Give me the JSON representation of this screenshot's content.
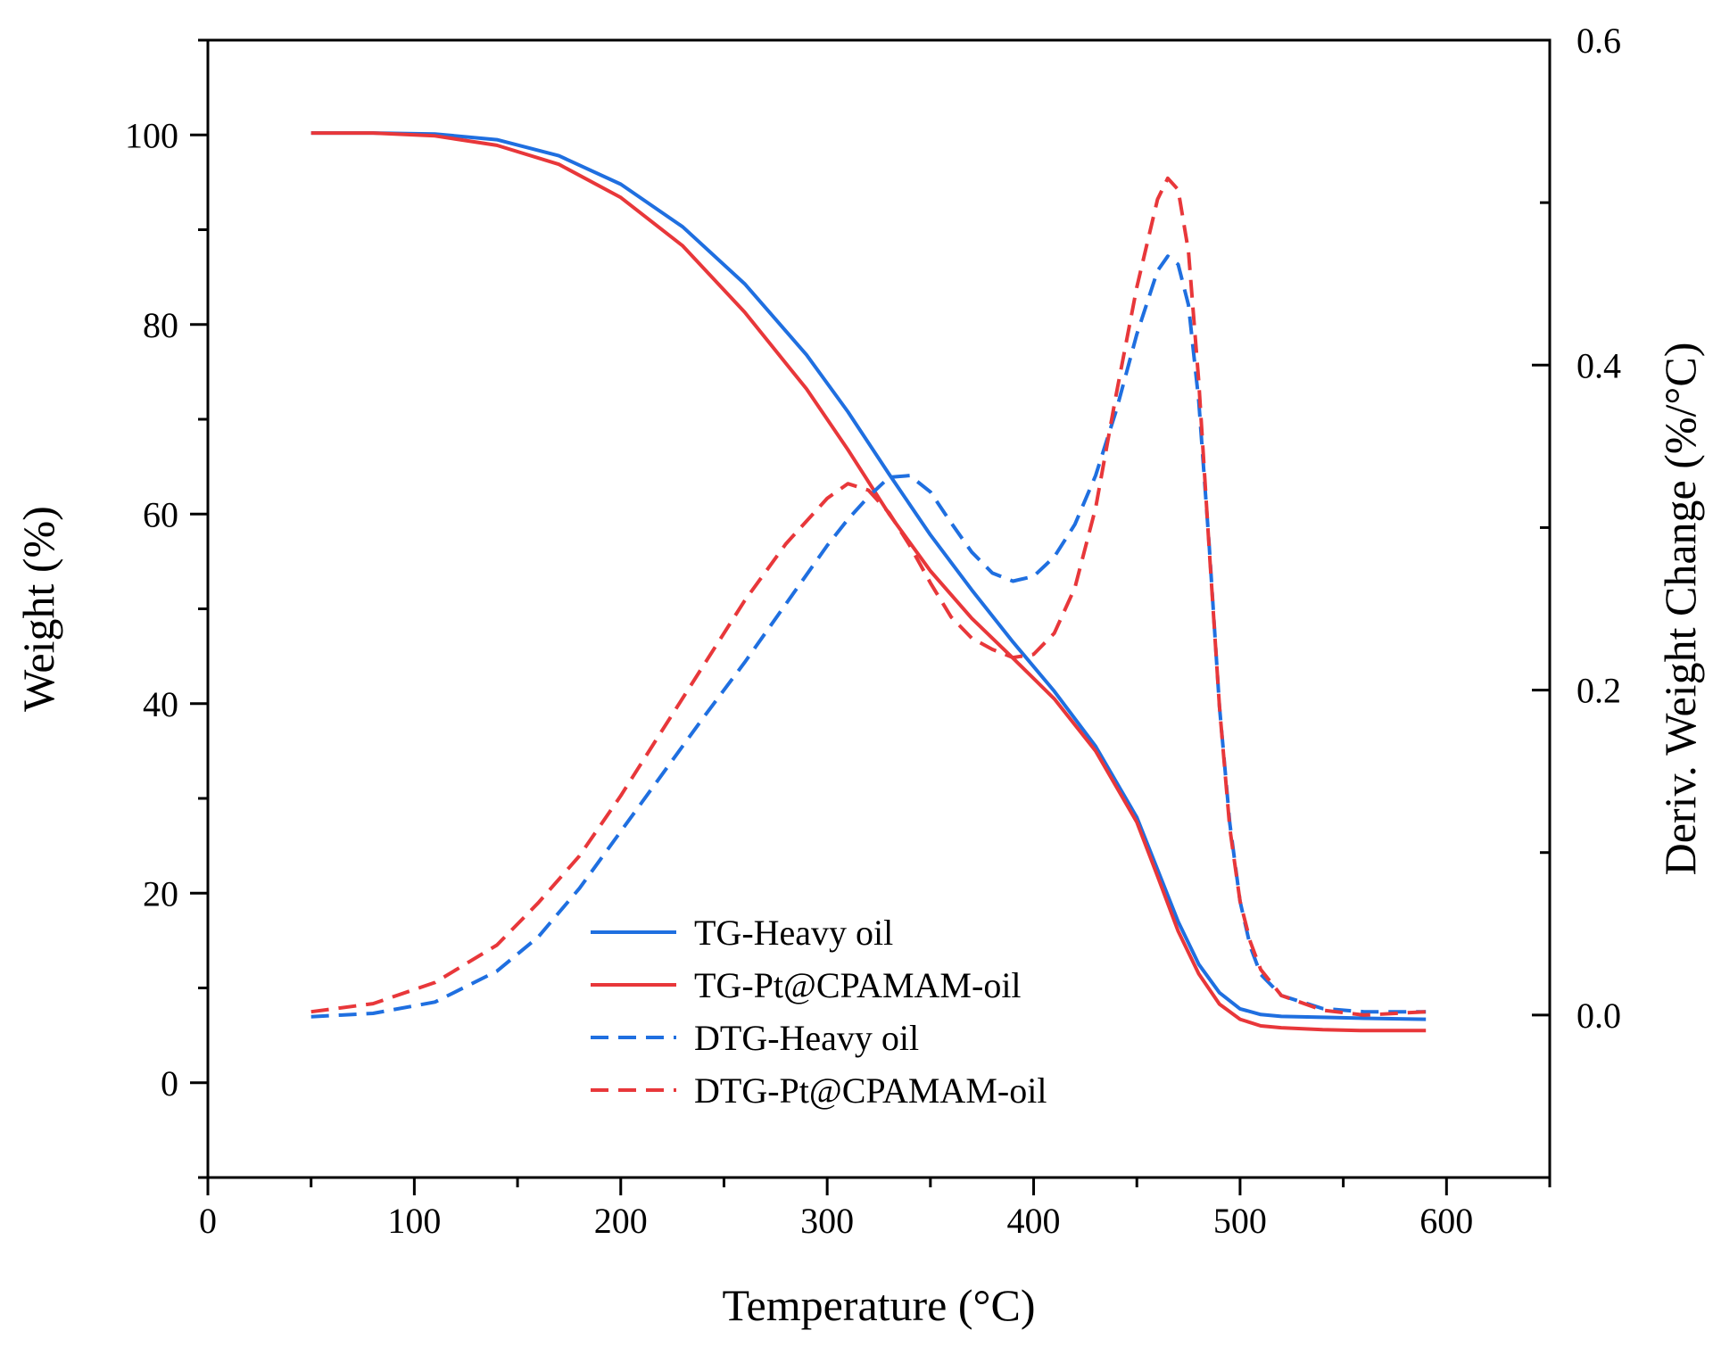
{
  "chart_data": {
    "type": "line",
    "xlabel": "Temperature (°C)",
    "ylabel": "Weight (%)",
    "y2label": "Deriv. Weight Change (%/°C)",
    "xlim": [
      0,
      650
    ],
    "ylim": [
      -10,
      110
    ],
    "y2lim": [
      -0.1,
      0.6
    ],
    "xticks": [
      0,
      100,
      200,
      300,
      400,
      500,
      600
    ],
    "yticks": [
      0,
      20,
      40,
      60,
      80,
      100
    ],
    "y2ticks": [
      0.0,
      0.2,
      0.4,
      0.6
    ],
    "grid": false,
    "legend_position": "bottom-center",
    "series": [
      {
        "name": "TG-Heavy oil",
        "axis": "left",
        "style": "solid",
        "color": "#1f6fe0",
        "x": [
          50,
          80,
          110,
          140,
          170,
          200,
          230,
          260,
          290,
          310,
          330,
          350,
          370,
          390,
          410,
          430,
          450,
          460,
          470,
          480,
          490,
          500,
          510,
          520,
          540,
          560,
          590
        ],
        "y": [
          100.2,
          100.2,
          100.1,
          99.5,
          97.8,
          94.8,
          90.3,
          84.3,
          76.8,
          70.8,
          64.2,
          57.8,
          52.0,
          46.5,
          41.3,
          35.5,
          28.0,
          22.5,
          17.0,
          12.5,
          9.5,
          7.8,
          7.2,
          7.0,
          6.9,
          6.8,
          6.7
        ]
      },
      {
        "name": "TG-Pt@CPAMAM-oil",
        "axis": "left",
        "style": "solid",
        "color": "#e8373a",
        "x": [
          50,
          80,
          110,
          140,
          170,
          200,
          230,
          260,
          290,
          310,
          330,
          350,
          370,
          390,
          410,
          430,
          450,
          460,
          470,
          480,
          490,
          500,
          510,
          520,
          540,
          560,
          590
        ],
        "y": [
          100.2,
          100.2,
          99.9,
          98.9,
          96.9,
          93.4,
          88.3,
          81.3,
          73.2,
          66.8,
          60.0,
          54.0,
          49.0,
          44.8,
          40.5,
          35.0,
          27.5,
          21.8,
          16.0,
          11.5,
          8.3,
          6.7,
          6.0,
          5.8,
          5.6,
          5.5,
          5.5
        ]
      },
      {
        "name": "DTG-Heavy oil",
        "axis": "right",
        "style": "dashed",
        "color": "#1f6fe0",
        "x": [
          50,
          80,
          110,
          140,
          160,
          180,
          200,
          220,
          240,
          260,
          280,
          300,
          310,
          320,
          330,
          340,
          350,
          360,
          370,
          380,
          390,
          400,
          410,
          420,
          430,
          440,
          450,
          460,
          465,
          470,
          475,
          480,
          485,
          490,
          495,
          500,
          505,
          510,
          520,
          540,
          560,
          590
        ],
        "y": [
          -0.001,
          0.001,
          0.008,
          0.027,
          0.048,
          0.078,
          0.113,
          0.148,
          0.183,
          0.217,
          0.253,
          0.289,
          0.305,
          0.319,
          0.331,
          0.332,
          0.322,
          0.303,
          0.285,
          0.272,
          0.267,
          0.27,
          0.282,
          0.302,
          0.332,
          0.372,
          0.419,
          0.458,
          0.467,
          0.462,
          0.437,
          0.378,
          0.29,
          0.19,
          0.118,
          0.07,
          0.042,
          0.025,
          0.012,
          0.004,
          0.002,
          0.002
        ]
      },
      {
        "name": "DTG-Pt@CPAMAM-oil",
        "axis": "right",
        "style": "dashed",
        "color": "#e8373a",
        "x": [
          50,
          80,
          110,
          140,
          160,
          180,
          200,
          220,
          240,
          260,
          280,
          300,
          310,
          320,
          330,
          340,
          350,
          360,
          370,
          380,
          390,
          400,
          410,
          420,
          430,
          440,
          450,
          460,
          465,
          470,
          475,
          480,
          485,
          490,
          495,
          500,
          505,
          510,
          520,
          540,
          560,
          590
        ],
        "y": [
          0.002,
          0.007,
          0.02,
          0.043,
          0.069,
          0.098,
          0.135,
          0.175,
          0.215,
          0.255,
          0.29,
          0.318,
          0.327,
          0.323,
          0.309,
          0.289,
          0.266,
          0.245,
          0.232,
          0.225,
          0.22,
          0.222,
          0.235,
          0.263,
          0.312,
          0.382,
          0.448,
          0.502,
          0.515,
          0.508,
          0.47,
          0.39,
          0.288,
          0.19,
          0.115,
          0.07,
          0.045,
          0.028,
          0.012,
          0.003,
          0.0,
          0.002
        ]
      }
    ]
  }
}
